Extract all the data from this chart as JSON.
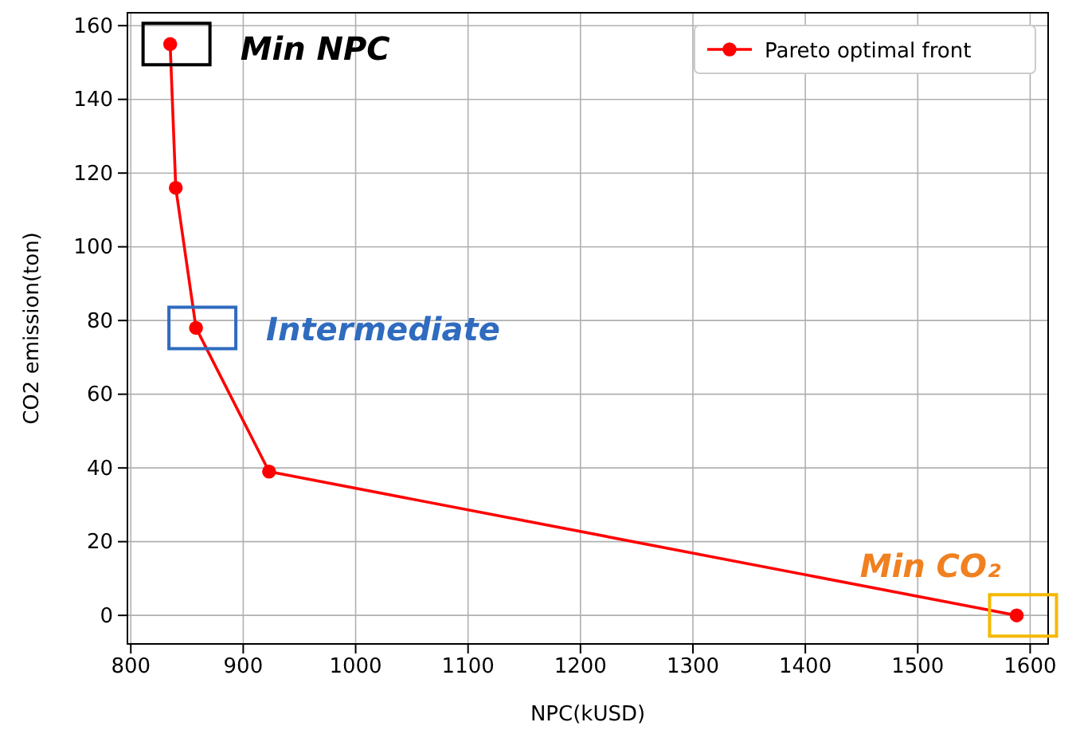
{
  "chart_data": {
    "type": "line",
    "xlabel": "NPC(kUSD)",
    "ylabel": "CO2 emission(ton)",
    "x": [
      835,
      840,
      858,
      923,
      1588
    ],
    "series": [
      {
        "name": "Pareto optimal front",
        "color": "#ff0000",
        "values": [
          155,
          116,
          78,
          39,
          0
        ]
      }
    ],
    "xlim": [
      797,
      1616
    ],
    "xticks": [
      800,
      900,
      1000,
      1100,
      1200,
      1300,
      1400,
      1500,
      1600
    ],
    "ylim": [
      -7.75,
      163.5
    ],
    "yticks": [
      0,
      20,
      40,
      60,
      80,
      100,
      120,
      140,
      160
    ],
    "grid": true,
    "legend": "top right",
    "marker": "circle",
    "line_style": "solid",
    "annotations": [
      {
        "text": "Min NPC",
        "x": 835,
        "y": 155
      },
      {
        "text": "Intermediate",
        "x": 858,
        "y": 78
      },
      {
        "text": "Min CO₂",
        "x": 1588,
        "y": 0
      }
    ]
  }
}
